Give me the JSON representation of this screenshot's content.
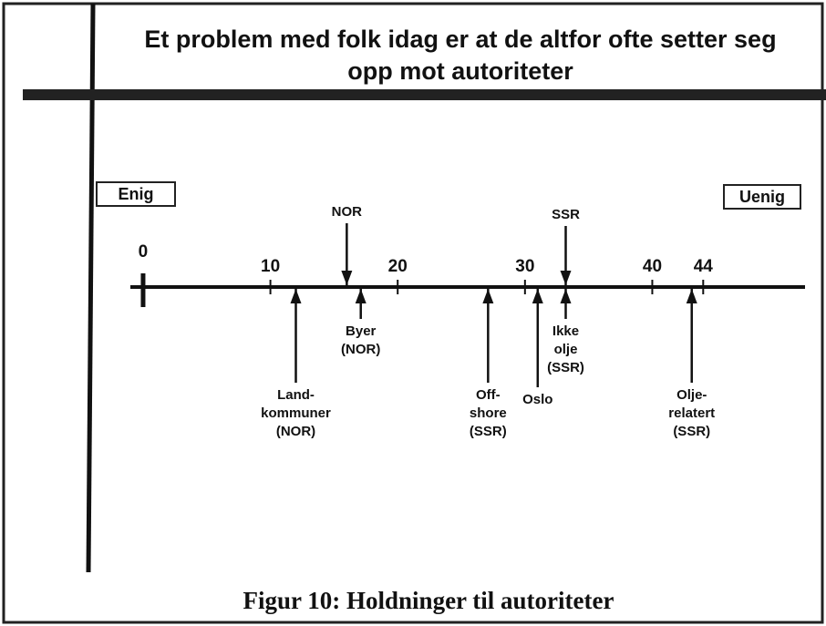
{
  "chart_data": {
    "type": "scale",
    "title": [
      "Et problem med folk idag er at de altfor ofte setter seg",
      "opp mot autoriteter"
    ],
    "left_label": "Enig",
    "right_label": "Uenig",
    "caption": "Figur 10: Holdninger til autoriteter",
    "xlim": [
      -1,
      52
    ],
    "xticks": [
      0,
      10,
      20,
      30,
      40,
      44
    ],
    "markers": [
      {
        "label": [
          "NOR"
        ],
        "value": 16,
        "side": "above"
      },
      {
        "label": [
          "SSR"
        ],
        "value": 33.2,
        "side": "above"
      },
      {
        "label": [
          "Land-",
          "kommuner",
          "(NOR)"
        ],
        "value": 12,
        "side": "below"
      },
      {
        "label": [
          "Byer",
          "(NOR)"
        ],
        "value": 17.1,
        "side": "below"
      },
      {
        "label": [
          "Off-",
          "shore",
          "(SSR)"
        ],
        "value": 27.1,
        "side": "below"
      },
      {
        "label": [
          "Oslo"
        ],
        "value": 31,
        "side": "below"
      },
      {
        "label": [
          "Ikke",
          "olje",
          "(SSR)"
        ],
        "value": 33.2,
        "side": "below"
      },
      {
        "label": [
          "Olje-",
          "relatert",
          "(SSR)"
        ],
        "value": 43.1,
        "side": "below"
      }
    ]
  }
}
